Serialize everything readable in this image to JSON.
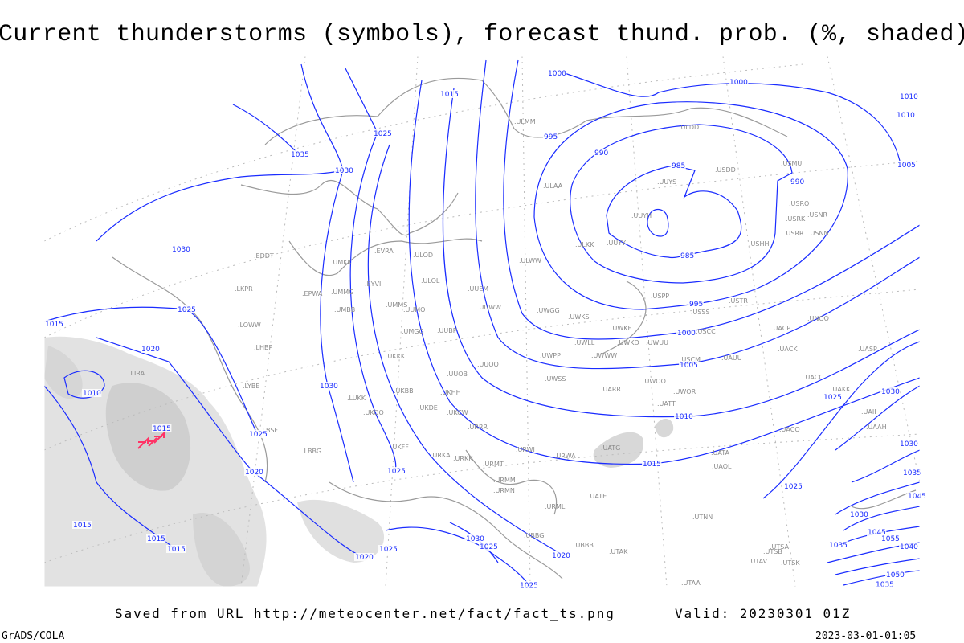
{
  "title": "Current thunderstorms (symbols), forecast thund. prob. (%, shaded)",
  "footer": {
    "source": "Saved from URL http://meteocenter.net/fact/fact_ts.png",
    "valid": "Valid: 20230301 01Z",
    "software": "GrADS/COLA",
    "timestamp": "2023-03-01-01:05"
  },
  "colors": {
    "isobar": "#1a2cff",
    "coastline": "#9a9a9a",
    "station": "#8a8a8a",
    "shading_light": "#e0e0e0",
    "shading_dark": "#c8c8c8",
    "thunderstorm_symbol": "#ff3366"
  },
  "legend_icons": [
    "thunderstorm-symbol-icon"
  ],
  "isobar_labels": [
    "1015",
    "1000",
    "1000",
    "1010",
    "1010",
    "1005",
    "995",
    "990",
    "985",
    "990",
    "985",
    "995",
    "1000",
    "1005",
    "1010",
    "1015",
    "1025",
    "1035",
    "1030",
    "1030",
    "1025",
    "1015",
    "1020",
    "1010",
    "1015",
    "1030",
    "1025",
    "1020",
    "1025",
    "1015",
    "1015",
    "1015",
    "1020",
    "1025",
    "1025",
    "1030",
    "1025",
    "1030",
    "1035",
    "1030",
    "1045",
    "1035",
    "1040",
    "1055",
    "1050",
    "1035",
    "1045",
    "1020",
    "1025",
    "1030",
    "1025"
  ],
  "stations": [
    ".ULDD",
    ".USDD",
    ".USMU",
    ".UUYS",
    ".UUYH",
    ".UUYY",
    ".ULKK",
    ".USHH",
    ".USRO",
    ".USRK",
    ".USNR",
    ".USRR",
    ".USNN",
    ".USPP",
    ".USTR",
    ".USSS",
    ".UWKS",
    ".UWKE",
    ".UWKD",
    ".UWUU",
    ".USCC",
    ".UNOO",
    ".UACP",
    ".UACK",
    ".UWLL",
    ".UWWW",
    ".USCM",
    ".UAUU",
    ".UASP",
    ".UACC",
    ".UAKK",
    ".UWOO",
    ".UWOR",
    ".UATT",
    ".UARR",
    ".UWSS",
    ".UWPP",
    ".UWGG",
    ".UUWW",
    ".UUEM",
    ".ULWW",
    ".ULAA",
    ".ULMM",
    ".UUOO",
    ".UUOB",
    ".UUBP",
    ".UUMO",
    ".UMMS",
    ".UMGG",
    ".UKKK",
    ".UMKK",
    ".EVRA",
    ".ULOD",
    ".ULOL",
    ".EYVI",
    ".UMMG",
    ".UMBB",
    ".EPWA",
    ".EDDT",
    ".LKPR",
    ".LOWW",
    ".LHBP",
    ".LYBE",
    ".LIRA",
    ".UKBB",
    ".UKHH",
    ".UKDE",
    ".UKCW",
    ".UKOO",
    ".LUKK",
    ".URRR",
    ".UKFF",
    ".URKA",
    ".URKK",
    ".URWI",
    ".URMT",
    ".URWA",
    ".URMM",
    ".URMN",
    ".URML",
    ".UATE",
    ".UATG",
    ".UATA",
    ".UAOL",
    ".UAAH",
    ".UTNN",
    ".UTAK",
    ".UBBB",
    ".UBBG",
    ".LBSF",
    ".LBBG",
    ".UTSA",
    ".UTSB",
    ".UTAV",
    ".UTAA",
    ".UTSK",
    ".UAII",
    ".UACO"
  ]
}
